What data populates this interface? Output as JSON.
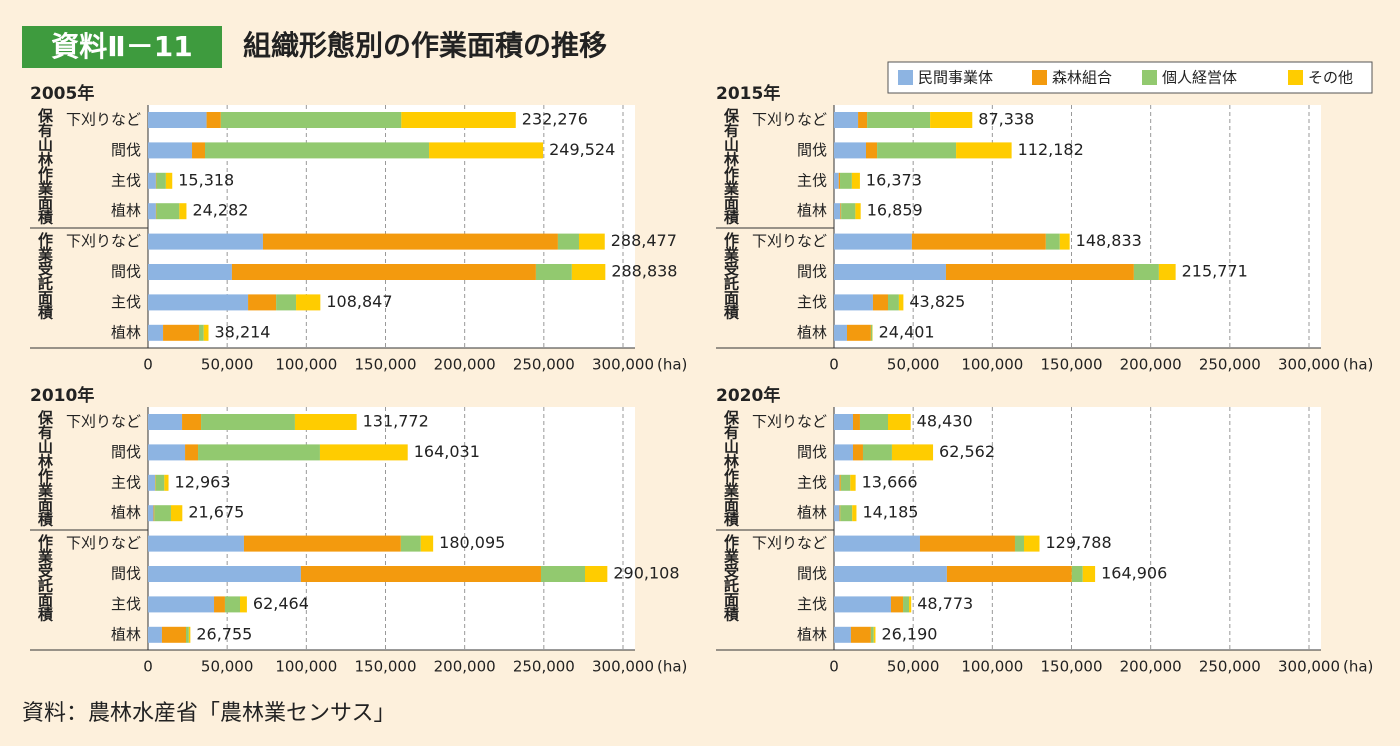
{
  "header": {
    "badge": "資料Ⅱ－11",
    "title": "組織形態別の作業面積の推移"
  },
  "legend": {
    "items": [
      {
        "name": "民間事業体",
        "color": "#8db4e2"
      },
      {
        "name": "森林組合",
        "color": "#f39a0e"
      },
      {
        "name": "個人経営体",
        "color": "#92c96f"
      },
      {
        "name": "その他",
        "color": "#ffcc00"
      }
    ]
  },
  "chart_data": [
    {
      "type": "bar",
      "title": "2005年",
      "unit": "(ha)",
      "group_labels": [
        "保有山林作業面積",
        "作業受託面積"
      ],
      "categories": [
        "下刈りなど",
        "間伐",
        "主伐",
        "植林",
        "下刈りなど",
        "間伐",
        "主伐",
        "植林"
      ],
      "series": [
        {
          "values": [
            37000,
            27800,
            5000,
            5000,
            72600,
            53000,
            63200,
            9500
          ]
        },
        {
          "values": [
            9000,
            8200,
            300,
            300,
            186300,
            192000,
            17700,
            22700
          ]
        },
        {
          "values": [
            114000,
            141500,
            6000,
            14500,
            13300,
            22700,
            12600,
            3000
          ]
        },
        {
          "values": [
            72276,
            72024,
            4018,
            4482,
            16277,
            21138,
            15347,
            3014
          ]
        }
      ],
      "totals": [
        232276,
        249524,
        15318,
        24282,
        288477,
        288838,
        108847,
        38214
      ],
      "total_labels": [
        "232,276",
        "249,524",
        "15,318",
        "24,282",
        "288,477",
        "288,838",
        "108,847",
        "38,214"
      ],
      "xlim": [
        0,
        300000
      ],
      "xticks": [
        0,
        {
          "value": 50000,
          "label": "50,000"
        },
        {
          "value": 100000,
          "label": "100,000"
        },
        {
          "value": 150000,
          "label": "150,000"
        },
        {
          "value": 200000,
          "label": "200,000"
        },
        {
          "value": 250000,
          "label": "250,000"
        },
        {
          "value": 300000,
          "label": "300,000"
        }
      ],
      "grid": true
    },
    {
      "type": "bar",
      "title": "2015年",
      "unit": "(ha)",
      "group_labels": [
        "保有山林作業面積",
        "作業受託面積"
      ],
      "categories": [
        "下刈りなど",
        "間伐",
        "主伐",
        "植林",
        "下刈りなど",
        "間伐",
        "主伐",
        "植林"
      ],
      "series": [
        {
          "values": [
            15200,
            20200,
            3000,
            4000,
            49200,
            70700,
            24600,
            8200
          ]
        },
        {
          "values": [
            5700,
            7000,
            800,
            500,
            84600,
            118700,
            9500,
            15100
          ]
        },
        {
          "values": [
            39800,
            49900,
            7500,
            9000,
            8800,
            15800,
            6900,
            900
          ]
        },
        {
          "values": [
            26638,
            35082,
            5073,
            3359,
            6233,
            10571,
            2825,
            201
          ]
        }
      ],
      "totals": [
        87338,
        112182,
        16373,
        16859,
        148833,
        215771,
        43825,
        24401
      ],
      "total_labels": [
        "87,338",
        "112,182",
        "16,373",
        "16,859",
        "148,833",
        "215,771",
        "43,825",
        "24,401"
      ],
      "xlim": [
        0,
        300000
      ],
      "xticks": [
        0,
        {
          "value": 50000,
          "label": "50,000"
        },
        {
          "value": 100000,
          "label": "100,000"
        },
        {
          "value": 150000,
          "label": "150,000"
        },
        {
          "value": 200000,
          "label": "200,000"
        },
        {
          "value": 250000,
          "label": "250,000"
        },
        {
          "value": 300000,
          "label": "300,000"
        }
      ],
      "grid": true
    },
    {
      "type": "bar",
      "title": "2010年",
      "unit": "(ha)",
      "group_labels": [
        "保有山林作業面積",
        "作業受託面積"
      ],
      "categories": [
        "下刈りなど",
        "間伐",
        "主伐",
        "植林",
        "下刈りなど",
        "間伐",
        "主伐",
        "植林"
      ],
      "series": [
        {
          "values": [
            21500,
            23400,
            4500,
            3500,
            60600,
            96600,
            41700,
            8800
          ]
        },
        {
          "values": [
            12000,
            8200,
            300,
            500,
            99100,
            151600,
            6900,
            15200
          ]
        },
        {
          "values": [
            59300,
            77000,
            5500,
            10500,
            12600,
            27800,
            9500,
            1800
          ]
        },
        {
          "values": [
            38972,
            55431,
            2663,
            7175,
            7795,
            14108,
            4364,
            955
          ]
        }
      ],
      "totals": [
        131772,
        164031,
        12963,
        21675,
        180095,
        290108,
        62464,
        26755
      ],
      "total_labels": [
        "131,772",
        "164,031",
        "12,963",
        "21,675",
        "180,095",
        "290,108",
        "62,464",
        "26,755"
      ],
      "xlim": [
        0,
        300000
      ],
      "xticks": [
        0,
        {
          "value": 50000,
          "label": "50,000"
        },
        {
          "value": 100000,
          "label": "100,000"
        },
        {
          "value": 150000,
          "label": "150,000"
        },
        {
          "value": 200000,
          "label": "200,000"
        },
        {
          "value": 250000,
          "label": "250,000"
        },
        {
          "value": 300000,
          "label": "300,000"
        }
      ],
      "grid": true
    },
    {
      "type": "bar",
      "title": "2020年",
      "unit": "(ha)",
      "group_labels": [
        "保有山林作業面積",
        "作業受託面積"
      ],
      "categories": [
        "下刈りなど",
        "間伐",
        "主伐",
        "植林",
        "下刈りなど",
        "間伐",
        "主伐",
        "植林"
      ],
      "series": [
        {
          "values": [
            12000,
            12000,
            3500,
            3500,
            54300,
            71300,
            36000,
            10700
          ]
        },
        {
          "values": [
            4400,
            6300,
            800,
            500,
            60000,
            78900,
            7600,
            12600
          ]
        },
        {
          "values": [
            17700,
            18300,
            6000,
            7500,
            5700,
            6900,
            3800,
            1800
          ]
        },
        {
          "values": [
            14330,
            25962,
            3366,
            2685,
            9788,
            7806,
            1373,
            1090
          ]
        }
      ],
      "totals": [
        48430,
        62562,
        13666,
        14185,
        129788,
        164906,
        48773,
        26190
      ],
      "total_labels": [
        "48,430",
        "62,562",
        "13,666",
        "14,185",
        "129,788",
        "164,906",
        "48,773",
        "26,190"
      ],
      "xlim": [
        0,
        300000
      ],
      "xticks": [
        0,
        {
          "value": 50000,
          "label": "50,000"
        },
        {
          "value": 100000,
          "label": "100,000"
        },
        {
          "value": 150000,
          "label": "150,000"
        },
        {
          "value": 200000,
          "label": "200,000"
        },
        {
          "value": 250000,
          "label": "250,000"
        },
        {
          "value": 300000,
          "label": "300,000"
        }
      ],
      "grid": true
    }
  ],
  "footer": {
    "source": "資料：農林水産省「農林業センサス」"
  }
}
